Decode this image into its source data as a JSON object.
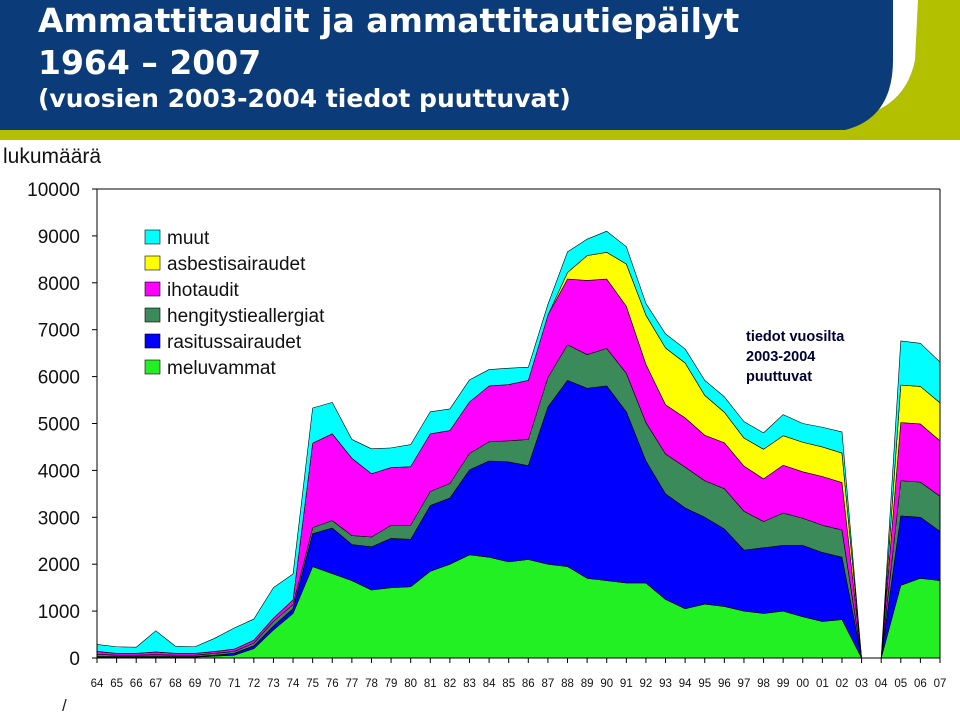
{
  "header": {
    "title_line1": "Ammattitaudit ja ammattitautiepäilyt",
    "title_line2": "1964 – 2007",
    "subtitle": "(vuosien 2003-2004 tiedot puuttuvat)",
    "colors": {
      "band": "#0b3b78",
      "accent": "#b2c000"
    }
  },
  "footer_mark": "/",
  "chart_data": {
    "type": "area",
    "stacked": true,
    "ylabel": "lukumäärä",
    "xlabel": "",
    "ylim": [
      0,
      10000
    ],
    "yticks": [
      0,
      1000,
      2000,
      3000,
      4000,
      5000,
      6000,
      7000,
      8000,
      9000,
      10000
    ],
    "grid": false,
    "legend_position": "top-left",
    "annotation": [
      "tiedot vuosilta",
      "2003-2004",
      "puuttuvat"
    ],
    "categories": [
      "64",
      "65",
      "66",
      "67",
      "68",
      "69",
      "70",
      "71",
      "72",
      "73",
      "74",
      "75",
      "76",
      "77",
      "78",
      "79",
      "80",
      "81",
      "82",
      "83",
      "84",
      "85",
      "86",
      "87",
      "88",
      "89",
      "90",
      "91",
      "92",
      "93",
      "94",
      "95",
      "96",
      "97",
      "98",
      "99",
      "00",
      "01",
      "02",
      "03",
      "04",
      "05",
      "06",
      "07"
    ],
    "series": [
      {
        "name": "meluvammat",
        "color": "#22f022",
        "values": [
          20,
          20,
          20,
          20,
          20,
          20,
          40,
          60,
          200,
          600,
          950,
          1950,
          1800,
          1650,
          1450,
          1500,
          1520,
          1850,
          2000,
          2200,
          2150,
          2050,
          2100,
          2000,
          1950,
          1700,
          1650,
          1600,
          1600,
          1250,
          1050,
          1150,
          1100,
          1000,
          950,
          1000,
          880,
          780,
          820,
          0,
          0,
          1550,
          1700,
          1650
        ]
      },
      {
        "name": "rasitussairaudet",
        "color": "#0000ff",
        "values": [
          10,
          10,
          10,
          10,
          10,
          10,
          20,
          40,
          60,
          80,
          100,
          700,
          970,
          770,
          920,
          1050,
          1010,
          1400,
          1410,
          1810,
          2050,
          2130,
          2000,
          3350,
          3970,
          4050,
          4150,
          3650,
          2600,
          2250,
          2150,
          1850,
          1650,
          1300,
          1400,
          1400,
          1520,
          1470,
          1330,
          0,
          0,
          1480,
          1300,
          1050
        ]
      },
      {
        "name": "hengitystieallergiat",
        "color": "#3a8a5a",
        "values": [
          50,
          30,
          30,
          40,
          30,
          30,
          40,
          40,
          60,
          100,
          90,
          130,
          160,
          190,
          210,
          280,
          300,
          300,
          310,
          350,
          410,
          450,
          560,
          630,
          760,
          720,
          800,
          820,
          820,
          850,
          870,
          780,
          860,
          830,
          560,
          690,
          580,
          580,
          580,
          0,
          0,
          750,
          750,
          750
        ]
      },
      {
        "name": "ihotaudit",
        "color": "#ff00ff",
        "values": [
          60,
          40,
          40,
          60,
          40,
          40,
          40,
          50,
          60,
          70,
          100,
          1800,
          1850,
          1650,
          1350,
          1230,
          1250,
          1230,
          1130,
          1100,
          1190,
          1200,
          1260,
          1330,
          1400,
          1580,
          1480,
          1430,
          1240,
          1050,
          1050,
          970,
          980,
          960,
          910,
          1020,
          990,
          1040,
          1010,
          0,
          0,
          1240,
          1240,
          1180
        ]
      },
      {
        "name": "asbestisairaudet",
        "color": "#ffff00",
        "values": [
          0,
          0,
          0,
          0,
          0,
          0,
          0,
          0,
          0,
          0,
          0,
          0,
          0,
          0,
          0,
          0,
          0,
          0,
          0,
          0,
          0,
          0,
          0,
          0,
          140,
          530,
          570,
          900,
          1050,
          1210,
          1170,
          850,
          650,
          600,
          630,
          630,
          630,
          630,
          630,
          0,
          0,
          800,
          800,
          810
        ]
      },
      {
        "name": "muut",
        "color": "#00ffff",
        "values": [
          150,
          140,
          130,
          450,
          150,
          140,
          280,
          450,
          450,
          650,
          550,
          750,
          670,
          400,
          530,
          420,
          470,
          470,
          460,
          470,
          350,
          350,
          280,
          230,
          440,
          350,
          450,
          370,
          250,
          300,
          300,
          320,
          330,
          350,
          350,
          450,
          400,
          420,
          450,
          0,
          0,
          940,
          920,
          870
        ]
      }
    ]
  }
}
